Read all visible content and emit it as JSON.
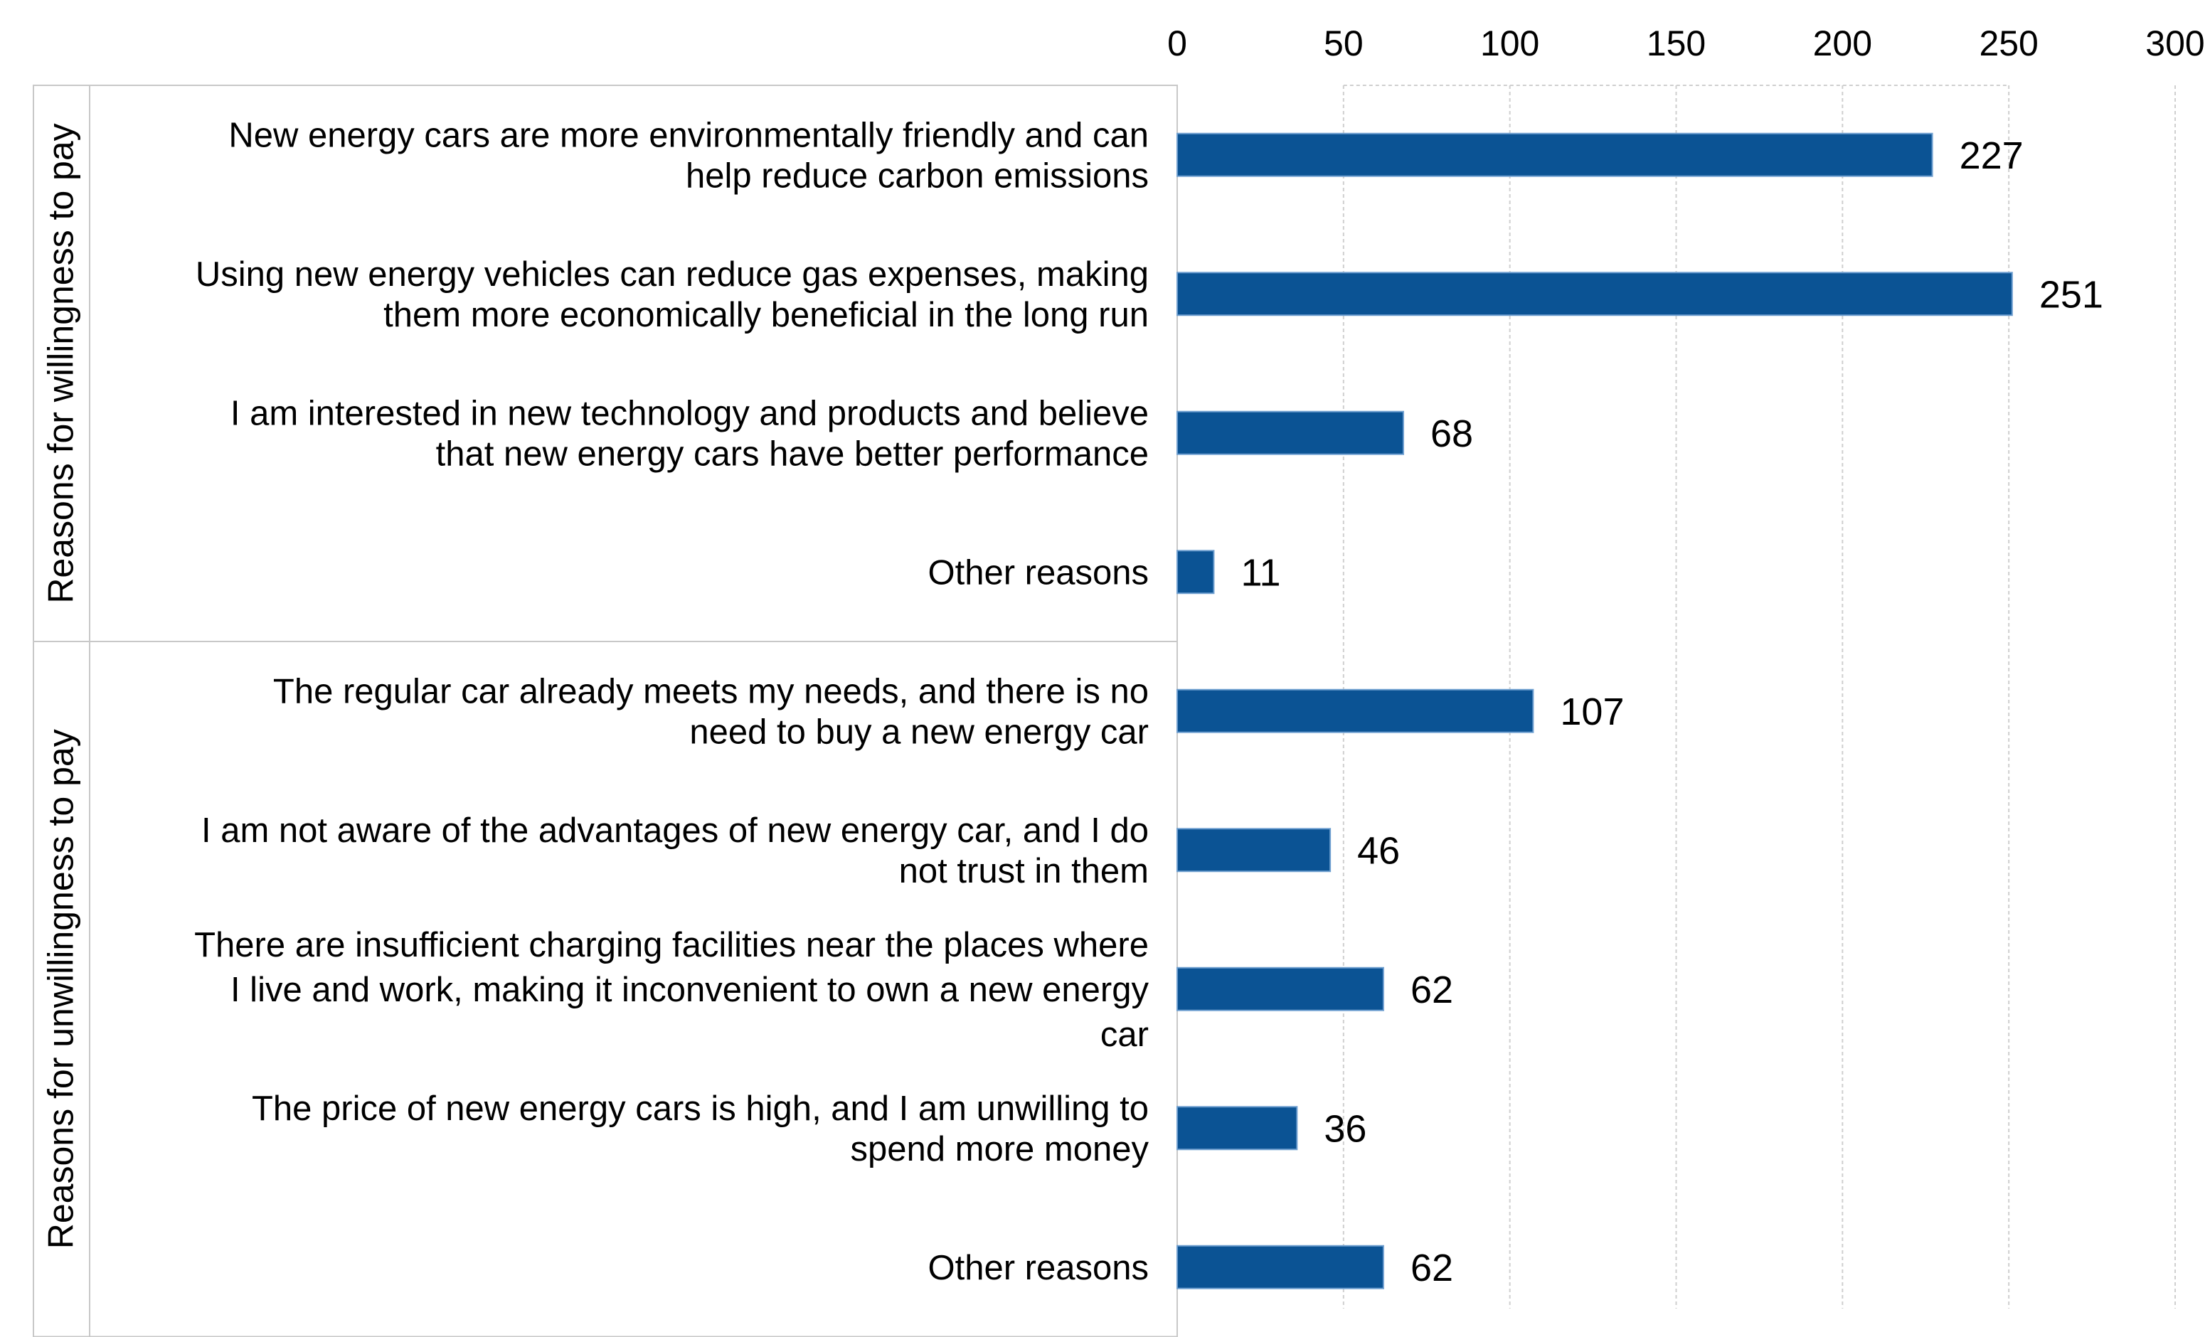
{
  "chart_data": {
    "type": "bar",
    "orientation": "horizontal",
    "title": "",
    "xlabel": "",
    "ylabel": "",
    "xlim": [
      0,
      300
    ],
    "x_ticks": [
      0,
      50,
      100,
      150,
      200,
      250,
      300
    ],
    "x_axis_position": "top",
    "grid": true,
    "legend": "none",
    "bar_color": "#0B5394",
    "groups": [
      {
        "name": "Reasons for willingness to pay",
        "categories": [
          {
            "lines": [
              "New energy cars are more environmentally friendly and can",
              "help reduce carbon emissions"
            ],
            "value": 227
          },
          {
            "lines": [
              "Using new energy vehicles can reduce gas expenses, making",
              "them more economically beneficial in the long run"
            ],
            "value": 251
          },
          {
            "lines": [
              "I am interested in new technology and products and believe",
              "that new energy cars have better performance"
            ],
            "value": 68
          },
          {
            "lines": [
              "Other reasons"
            ],
            "value": 11
          }
        ]
      },
      {
        "name": "Reasons for unwillingness to pay",
        "categories": [
          {
            "lines": [
              "The regular car already meets my needs, and there is no",
              "need to buy a new energy car"
            ],
            "value": 107
          },
          {
            "lines": [
              "I am not aware of the advantages of new energy car, and I do",
              "not trust in them"
            ],
            "value": 46
          },
          {
            "lines": [
              "There are insufficient charging facilities near the places where",
              "I live and work, making it inconvenient to own a new energy",
              "car"
            ],
            "value": 62
          },
          {
            "lines": [
              "The price of new energy cars is high, and I am unwilling to",
              "spend more money"
            ],
            "value": 36
          },
          {
            "lines": [
              "Other reasons"
            ],
            "value": 62
          }
        ]
      }
    ]
  }
}
